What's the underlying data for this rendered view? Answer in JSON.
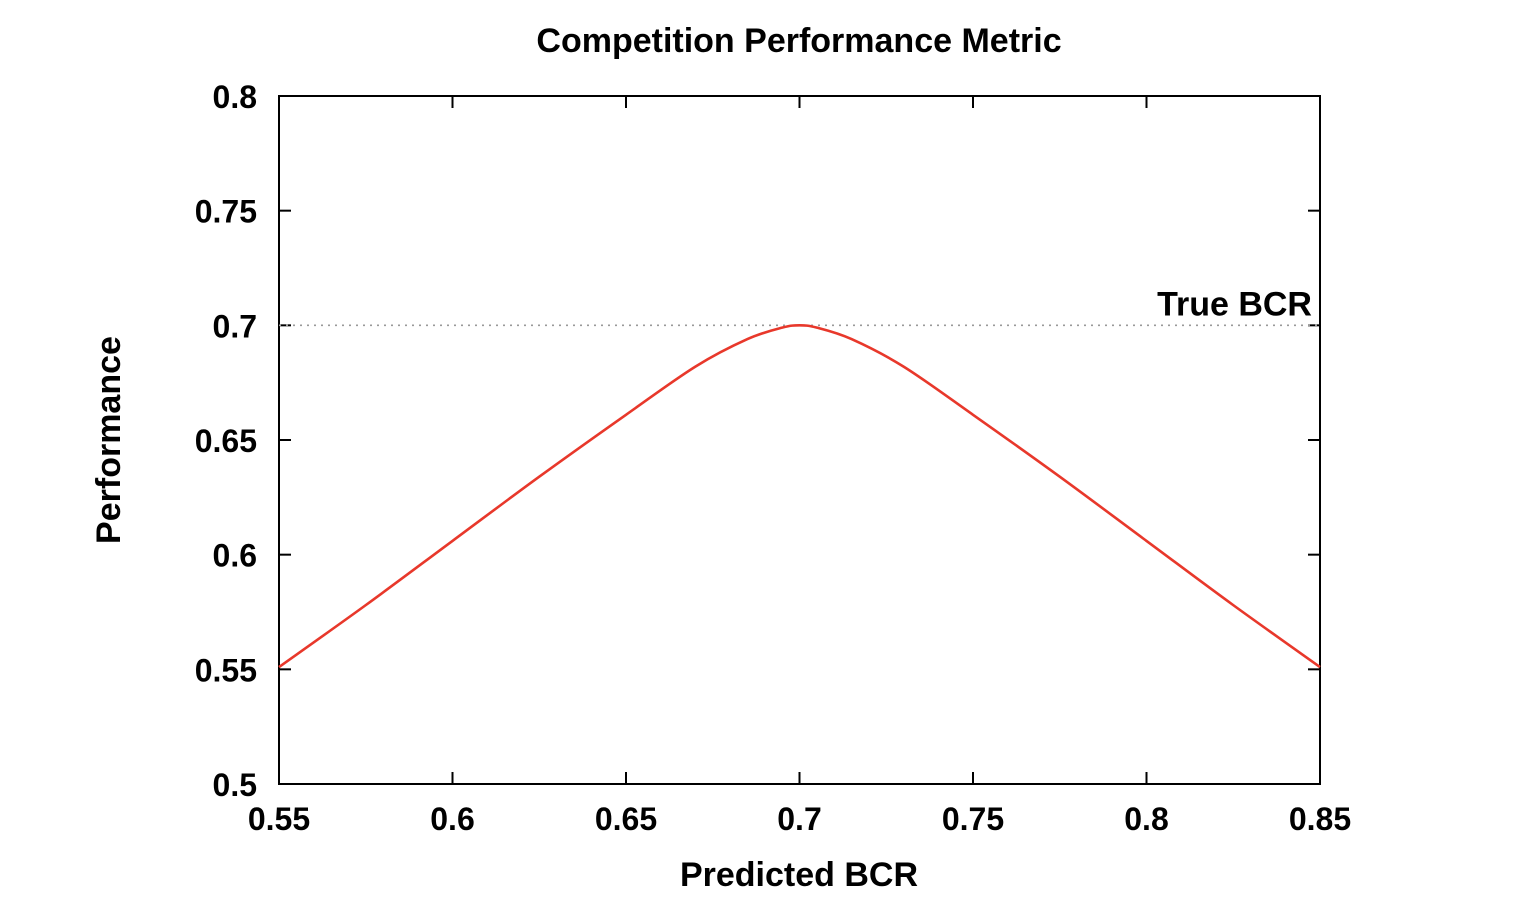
{
  "chart_data": {
    "type": "line",
    "title": "Competition Performance Metric",
    "xlabel": "Predicted BCR",
    "ylabel": "Performance",
    "xlim": [
      0.55,
      0.85
    ],
    "ylim": [
      0.5,
      0.8
    ],
    "x_ticks": [
      "0.55",
      "0.6",
      "0.65",
      "0.7",
      "0.75",
      "0.8",
      "0.85"
    ],
    "x_tick_values": [
      0.55,
      0.6,
      0.65,
      0.7,
      0.75,
      0.8,
      0.85
    ],
    "y_ticks": [
      "0.5",
      "0.55",
      "0.6",
      "0.65",
      "0.7",
      "0.75",
      "0.8"
    ],
    "y_tick_values": [
      0.5,
      0.55,
      0.6,
      0.65,
      0.7,
      0.75,
      0.8
    ],
    "grid": false,
    "reference_line": {
      "label": "True BCR",
      "y": 0.7,
      "style": "dotted",
      "color": "#999999"
    },
    "series": [
      {
        "color": "#e8382b",
        "x": [
          0.55,
          0.575,
          0.6,
          0.625,
          0.65,
          0.67,
          0.685,
          0.695,
          0.7,
          0.705,
          0.715,
          0.73,
          0.75,
          0.775,
          0.8,
          0.825,
          0.85
        ],
        "y": [
          0.551,
          0.578,
          0.606,
          0.634,
          0.661,
          0.682,
          0.694,
          0.699,
          0.7,
          0.699,
          0.694,
          0.682,
          0.661,
          0.634,
          0.606,
          0.578,
          0.551
        ]
      }
    ]
  }
}
